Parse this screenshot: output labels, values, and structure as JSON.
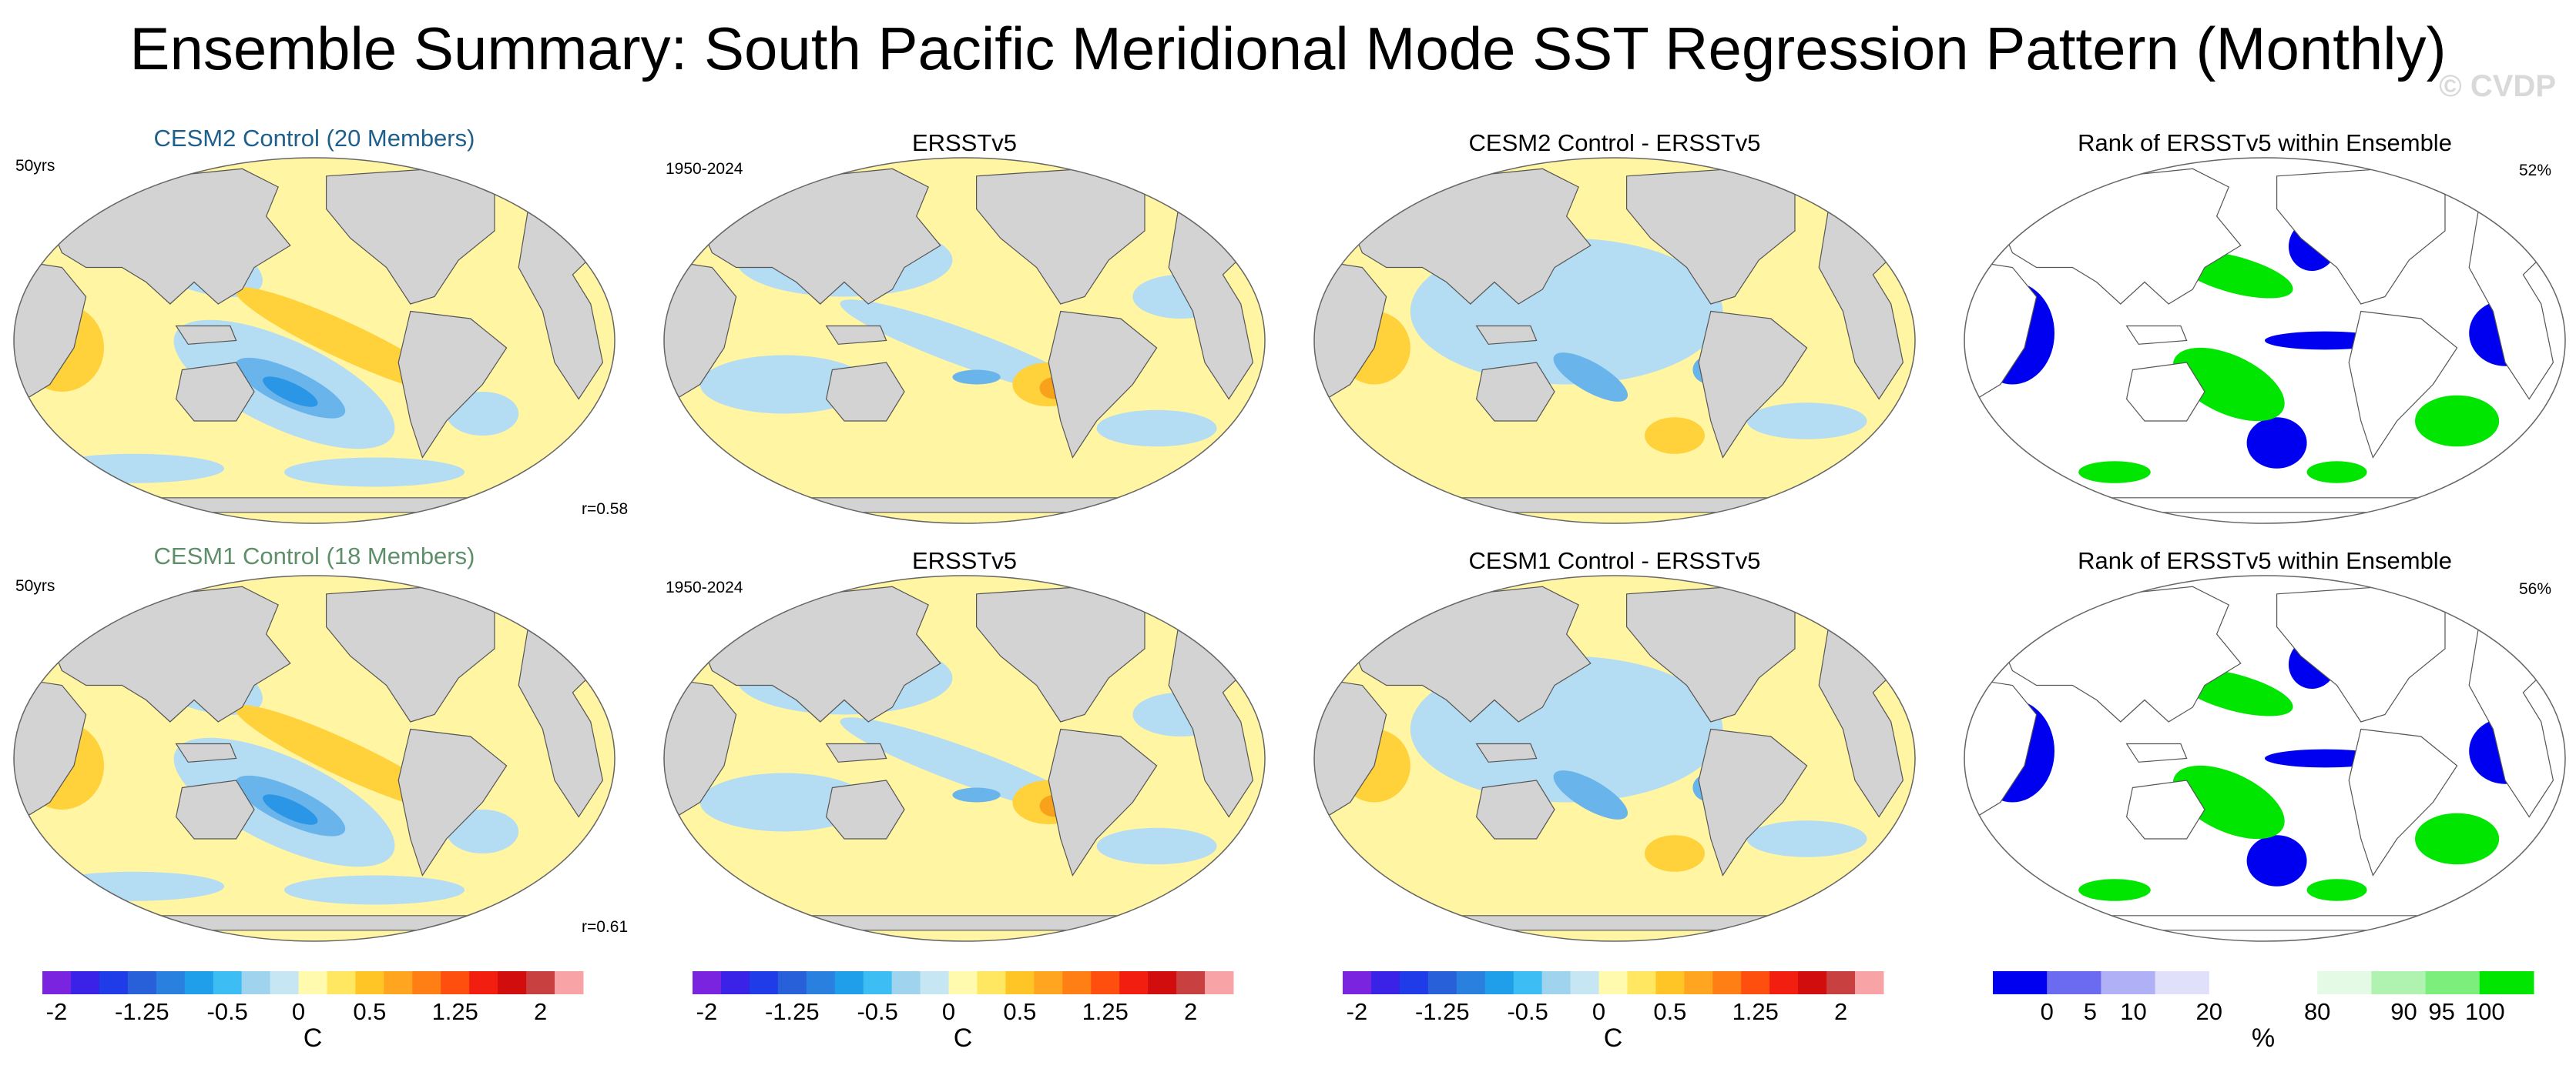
{
  "title": "Ensemble Summary: South Pacific Meridional Mode SST Regression Pattern (Monthly)",
  "watermark": "© CVDP",
  "colors": {
    "land": "#d3d3d3",
    "ocean_neg1": "#b4dcf2",
    "ocean_neg2": "#6ab4ec",
    "ocean_neg3": "#2c96e6",
    "ocean_pos1": "#fff5a2",
    "ocean_pos2": "#ffd13a",
    "ocean_pos3": "#f7a21a",
    "cesm2_title": "#1f5f8b",
    "cesm1_title": "#5f8f6a",
    "rank_blue": "#0000f0",
    "rank_green": "#00e600"
  },
  "rows": [
    {
      "panels": [
        {
          "title": "CESM2 Control (20 Members)",
          "left_label": "50yrs",
          "right_label": "",
          "corner": "r=0.58",
          "kind": "sst",
          "title_color": "cesm2_title"
        },
        {
          "title": "ERSSTv5",
          "left_label": "1950-2024",
          "right_label": "",
          "corner": "",
          "kind": "sst"
        },
        {
          "title": "CESM2 Control - ERSSTv5",
          "left_label": "",
          "right_label": "",
          "corner": "",
          "kind": "diff"
        },
        {
          "title": "Rank of ERSSTv5 within Ensemble",
          "left_label": "",
          "right_label": "52%",
          "corner": "",
          "kind": "rank"
        }
      ]
    },
    {
      "panels": [
        {
          "title": "CESM1 Control (18 Members)",
          "left_label": "50yrs",
          "right_label": "",
          "corner": "r=0.61",
          "kind": "sst",
          "title_color": "cesm1_title"
        },
        {
          "title": "ERSSTv5",
          "left_label": "1950-2024",
          "right_label": "",
          "corner": "",
          "kind": "sst"
        },
        {
          "title": "CESM1 Control - ERSSTv5",
          "left_label": "",
          "right_label": "",
          "corner": "",
          "kind": "diff"
        },
        {
          "title": "Rank of ERSSTv5 within Ensemble",
          "left_label": "",
          "right_label": "56%",
          "corner": "",
          "kind": "rank"
        }
      ]
    }
  ],
  "colorbars": [
    {
      "unit": "C",
      "colors": [
        "#7a24e0",
        "#3a22e6",
        "#1f3ce8",
        "#2860d9",
        "#2a80df",
        "#1f9fea",
        "#3cbdf3",
        "#9fd3ee",
        "#c7e6f3",
        "#fffaad",
        "#ffe761",
        "#ffc526",
        "#ffa51f",
        "#ff7f14",
        "#ff4f0f",
        "#f21e0f",
        "#d20d0d",
        "#c8403f",
        "#f8a4a7"
      ],
      "tick_labels": [
        "-2",
        "-1.25",
        "-0.5",
        "0",
        "0.5",
        "1.25",
        "2"
      ],
      "tick_positions": [
        0.5,
        3.5,
        6.5,
        9,
        11.5,
        14.5,
        17.5
      ]
    },
    {
      "unit": "C",
      "colors": [
        "#7a24e0",
        "#3a22e6",
        "#1f3ce8",
        "#2860d9",
        "#2a80df",
        "#1f9fea",
        "#3cbdf3",
        "#9fd3ee",
        "#c7e6f3",
        "#fffaad",
        "#ffe761",
        "#ffc526",
        "#ffa51f",
        "#ff7f14",
        "#ff4f0f",
        "#f21e0f",
        "#d20d0d",
        "#c8403f",
        "#f8a4a7"
      ],
      "tick_labels": [
        "-2",
        "-1.25",
        "-0.5",
        "0",
        "0.5",
        "1.25",
        "2"
      ],
      "tick_positions": [
        0.5,
        3.5,
        6.5,
        9,
        11.5,
        14.5,
        17.5
      ]
    },
    {
      "unit": "C",
      "colors": [
        "#7a24e0",
        "#3a22e6",
        "#1f3ce8",
        "#2860d9",
        "#2a80df",
        "#1f9fea",
        "#3cbdf3",
        "#9fd3ee",
        "#c7e6f3",
        "#fffaad",
        "#ffe761",
        "#ffc526",
        "#ffa51f",
        "#ff7f14",
        "#ff4f0f",
        "#f21e0f",
        "#d20d0d",
        "#c8403f",
        "#f8a4a7"
      ],
      "tick_labels": [
        "-2",
        "-1.25",
        "-0.5",
        "0",
        "0.5",
        "1.25",
        "2"
      ],
      "tick_positions": [
        0.5,
        3.5,
        6.5,
        9,
        11.5,
        14.5,
        17.5
      ]
    },
    {
      "unit": "%",
      "colors": [
        "#0000f0",
        "#6b6bf2",
        "#b0b0f6",
        "#e0e0fa",
        "#ffffff",
        "#ffffff",
        "#e4fae4",
        "#b0f2b0",
        "#7cee7c",
        "#00e600"
      ],
      "tick_labels": [
        "0",
        "5",
        "10",
        "20",
        "80",
        "90",
        "95",
        "100"
      ],
      "tick_positions": [
        1,
        1.8,
        2.6,
        4,
        6,
        7.6,
        8.3,
        9.1
      ]
    }
  ],
  "chart_data": [
    {
      "type": "heatmap",
      "title": "CESM2 Control (20 Members)",
      "period": "50yrs",
      "pattern_correlation": "r=0.58",
      "units": "C",
      "colorbar_range": [
        -2,
        2
      ],
      "contour_levels": [
        -2,
        -1.75,
        -1.5,
        -1.25,
        -1,
        -0.75,
        -0.5,
        -0.25,
        -0.1,
        0,
        0.1,
        0.25,
        0.5,
        0.75,
        1,
        1.25,
        1.5,
        1.75,
        2
      ],
      "description_of_values": "cool anomaly (~-0.75) in central South Pacific; warm (~0.5) band from subtropical S Pacific to Peru; warm Indian Ocean"
    },
    {
      "type": "heatmap",
      "title": "ERSSTv5",
      "period": "1950-2024",
      "units": "C",
      "colorbar_range": [
        -2,
        2
      ]
    },
    {
      "type": "heatmap",
      "title": "CESM2 Control - ERSSTv5",
      "units": "C",
      "colorbar_range": [
        -2,
        2
      ]
    },
    {
      "type": "heatmap",
      "title": "Rank of ERSSTv5 within Ensemble",
      "units": "%",
      "summary": "52%",
      "levels": [
        0,
        5,
        10,
        20,
        80,
        90,
        95,
        100
      ]
    },
    {
      "type": "heatmap",
      "title": "CESM1 Control (18 Members)",
      "period": "50yrs",
      "pattern_correlation": "r=0.61",
      "units": "C",
      "colorbar_range": [
        -2,
        2
      ]
    },
    {
      "type": "heatmap",
      "title": "ERSSTv5",
      "period": "1950-2024",
      "units": "C",
      "colorbar_range": [
        -2,
        2
      ]
    },
    {
      "type": "heatmap",
      "title": "CESM1 Control - ERSSTv5",
      "units": "C",
      "colorbar_range": [
        -2,
        2
      ]
    },
    {
      "type": "heatmap",
      "title": "Rank of ERSSTv5 within Ensemble",
      "units": "%",
      "summary": "56%",
      "levels": [
        0,
        5,
        10,
        20,
        80,
        90,
        95,
        100
      ]
    }
  ]
}
